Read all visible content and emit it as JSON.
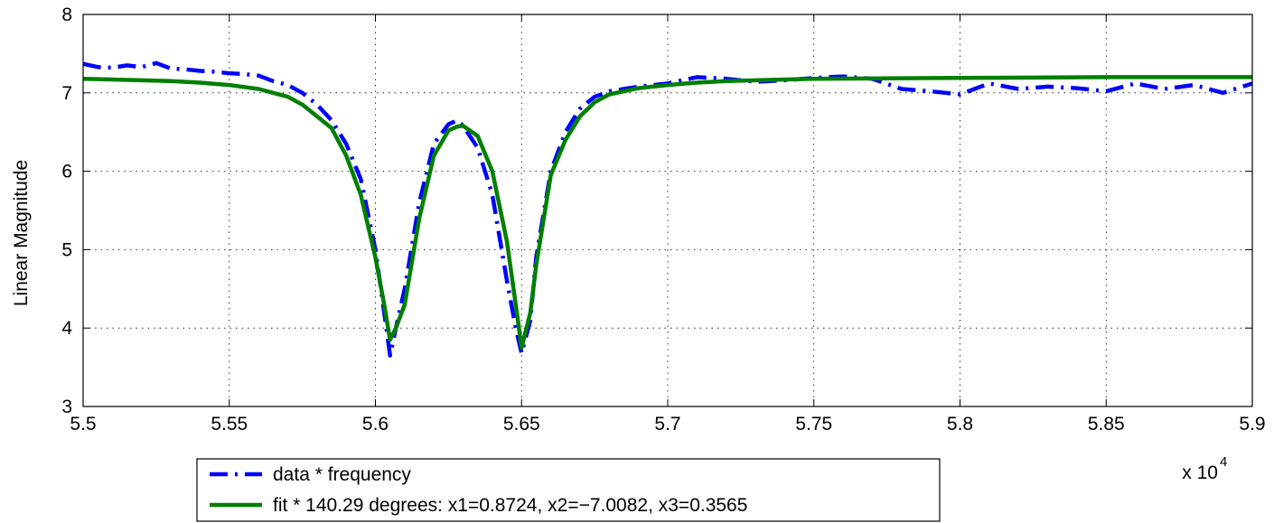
{
  "chart_data": {
    "type": "line",
    "title": "",
    "xlabel": "",
    "ylabel": "Linear Magnitude",
    "x_multiplier_label": "x 10",
    "x_multiplier_exponent": "4",
    "xlim": [
      5.5,
      5.9
    ],
    "ylim": [
      3,
      8
    ],
    "x_ticks": [
      "5.5",
      "5.55",
      "5.6",
      "5.65",
      "5.7",
      "5.75",
      "5.8",
      "5.85",
      "5.9"
    ],
    "y_ticks": [
      "3",
      "4",
      "5",
      "6",
      "7",
      "8"
    ],
    "x_tick_values": [
      5.5,
      5.55,
      5.6,
      5.65,
      5.7,
      5.75,
      5.8,
      5.85,
      5.9
    ],
    "y_tick_values": [
      3,
      4,
      5,
      6,
      7,
      8
    ],
    "grid": true,
    "legend_position": "bottom-left, below plot",
    "series": [
      {
        "name": "data * frequency",
        "color": "#0000ff",
        "style": "dash-dot",
        "x": [
          5.5,
          5.505,
          5.51,
          5.515,
          5.52,
          5.525,
          5.53,
          5.535,
          5.54,
          5.545,
          5.55,
          5.555,
          5.56,
          5.565,
          5.57,
          5.575,
          5.58,
          5.585,
          5.59,
          5.595,
          5.6,
          5.603,
          5.605,
          5.607,
          5.61,
          5.615,
          5.62,
          5.625,
          5.628,
          5.63,
          5.635,
          5.64,
          5.645,
          5.648,
          5.65,
          5.653,
          5.655,
          5.66,
          5.665,
          5.67,
          5.675,
          5.68,
          5.69,
          5.7,
          5.71,
          5.72,
          5.73,
          5.74,
          5.75,
          5.76,
          5.77,
          5.78,
          5.79,
          5.8,
          5.81,
          5.82,
          5.83,
          5.84,
          5.85,
          5.86,
          5.87,
          5.88,
          5.89,
          5.9
        ],
        "y": [
          7.37,
          7.33,
          7.32,
          7.35,
          7.33,
          7.38,
          7.31,
          7.3,
          7.28,
          7.27,
          7.25,
          7.24,
          7.22,
          7.15,
          7.1,
          7.0,
          6.85,
          6.65,
          6.35,
          5.9,
          5.0,
          4.2,
          3.65,
          4.0,
          4.5,
          5.6,
          6.35,
          6.6,
          6.65,
          6.58,
          6.3,
          5.7,
          4.6,
          4.0,
          3.68,
          4.1,
          4.9,
          6.0,
          6.5,
          6.8,
          6.95,
          7.02,
          7.08,
          7.12,
          7.2,
          7.18,
          7.14,
          7.16,
          7.19,
          7.21,
          7.18,
          7.05,
          7.02,
          6.98,
          7.12,
          7.05,
          7.08,
          7.06,
          7.02,
          7.12,
          7.05,
          7.1,
          7.0,
          7.12
        ]
      },
      {
        "name": "fit * 140.29 degrees: x1=0.8724, x2=−7.0082, x3=0.3565",
        "color": "#007f00",
        "style": "solid",
        "x": [
          5.5,
          5.51,
          5.52,
          5.53,
          5.54,
          5.55,
          5.56,
          5.565,
          5.57,
          5.575,
          5.58,
          5.585,
          5.59,
          5.595,
          5.6,
          5.603,
          5.605,
          5.607,
          5.61,
          5.615,
          5.62,
          5.625,
          5.628,
          5.63,
          5.635,
          5.64,
          5.645,
          5.648,
          5.65,
          5.653,
          5.655,
          5.66,
          5.665,
          5.67,
          5.675,
          5.68,
          5.69,
          5.7,
          5.71,
          5.72,
          5.73,
          5.75,
          5.8,
          5.85,
          5.9
        ],
        "y": [
          7.18,
          7.17,
          7.16,
          7.15,
          7.13,
          7.1,
          7.05,
          7.0,
          6.95,
          6.85,
          6.7,
          6.55,
          6.2,
          5.7,
          4.9,
          4.3,
          3.85,
          4.0,
          4.3,
          5.4,
          6.2,
          6.52,
          6.57,
          6.58,
          6.45,
          6.0,
          5.1,
          4.3,
          3.75,
          4.2,
          4.8,
          5.95,
          6.4,
          6.7,
          6.88,
          6.98,
          7.06,
          7.1,
          7.13,
          7.15,
          7.16,
          7.18,
          7.19,
          7.2,
          7.2
        ]
      }
    ]
  }
}
